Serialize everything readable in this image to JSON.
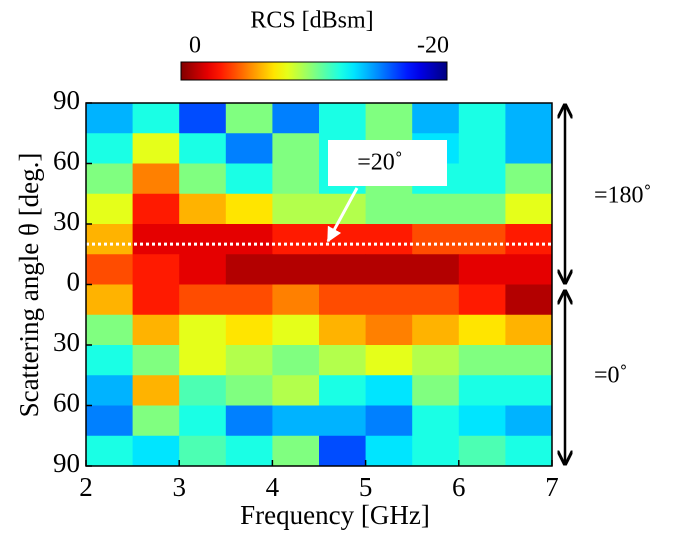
{
  "chart_data": {
    "type": "heatmap",
    "title": "RCS [dBsm]",
    "x_label": "Frequency [GHz]",
    "y_label": "Scattering angle θ [deg.]",
    "x": [
      2.25,
      2.75,
      3.25,
      3.75,
      4.25,
      4.75,
      5.25,
      5.75,
      6.25,
      6.75
    ],
    "y": [
      82.5,
      67.5,
      52.5,
      37.5,
      22.5,
      7.5,
      -7.5,
      -22.5,
      -37.5,
      -52.5,
      -67.5,
      -82.5
    ],
    "z": [
      [
        -14,
        -12,
        -16,
        -10,
        -15,
        -12,
        -10,
        -14,
        -12,
        -14
      ],
      [
        -12,
        -8,
        -12,
        -15,
        -10,
        -12,
        -10,
        -13,
        -12,
        -14
      ],
      [
        -10,
        -5,
        -10,
        -12,
        -10,
        -12,
        -10,
        -12,
        -12,
        -10
      ],
      [
        -8,
        -3,
        -6,
        -7,
        -9,
        -9,
        -10,
        -10,
        -10,
        -8
      ],
      [
        -6,
        -2,
        -2,
        -2,
        -3,
        -3,
        -3,
        -4,
        -4,
        -3
      ],
      [
        -4,
        -3,
        -2,
        -1,
        -1,
        -1,
        -1,
        -1,
        -2,
        -2
      ],
      [
        -6,
        -3,
        -4,
        -4,
        -5,
        -4,
        -4,
        -4,
        -3,
        -1
      ],
      [
        -10,
        -6,
        -8,
        -7,
        -8,
        -6,
        -5,
        -6,
        -7,
        -6
      ],
      [
        -12,
        -10,
        -8,
        -9,
        -10,
        -9,
        -8,
        -9,
        -10,
        -10
      ],
      [
        -14,
        -6,
        -11,
        -10,
        -9,
        -12,
        -13,
        -10,
        -12,
        -12
      ],
      [
        -15,
        -10,
        -12,
        -15,
        -14,
        -14,
        -15,
        -12,
        -13,
        -14
      ],
      [
        -12,
        -13,
        -11,
        -12,
        -10,
        -16,
        -13,
        -12,
        -11,
        -12
      ]
    ],
    "xlim": [
      2,
      7
    ],
    "xticks": [
      2,
      3,
      4,
      5,
      6,
      7
    ],
    "ylim": [
      -90,
      90
    ],
    "yticks": [
      {
        "value": -90,
        "label": "90"
      },
      {
        "value": -60,
        "label": "60"
      },
      {
        "value": -30,
        "label": "30"
      },
      0,
      30,
      60,
      90
    ],
    "colorbar_lim": [
      0,
      -20
    ],
    "colorbar_ticks": [
      0,
      -20
    ],
    "colormap": "jet",
    "reference_line": 20,
    "annotations": [
      "=20˚",
      "=180˚",
      "=0˚"
    ]
  }
}
